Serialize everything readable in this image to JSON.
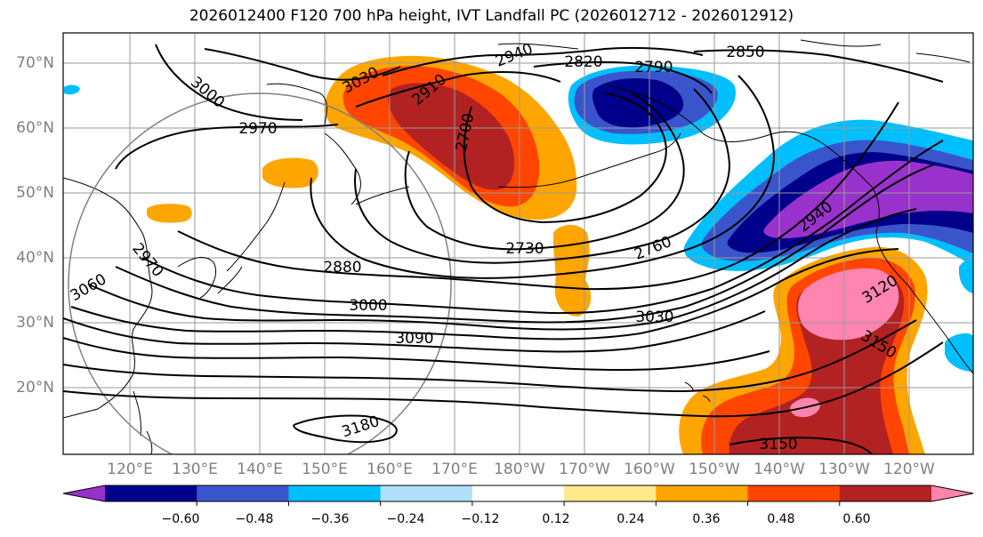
{
  "title": "2026012400 F120 700 hPa height, IVT Landfall PC (2026012712 - 2026012912)",
  "lat_labels": [
    "70°N",
    "60°N",
    "50°N",
    "40°N",
    "30°N",
    "20°N"
  ],
  "lon_labels": [
    "120°E",
    "130°E",
    "140°E",
    "150°E",
    "160°E",
    "170°E",
    "180°W",
    "170°W",
    "160°W",
    "150°W",
    "140°W",
    "130°W",
    "120°W"
  ],
  "contour_labels": [
    "2850",
    "2940",
    "2820",
    "2790",
    "3030",
    "2910",
    "3000",
    "2700",
    "2970",
    "3060",
    "2970",
    "2880",
    "2730",
    "2760",
    "2940",
    "3000",
    "3030",
    "3090",
    "3120",
    "3150",
    "3180",
    "3150"
  ],
  "colorbar": {
    "ticks": [
      "−0.60",
      "−0.48",
      "−0.36",
      "−0.24",
      "−0.12",
      "0.12",
      "0.24",
      "0.36",
      "0.48",
      "0.60"
    ],
    "colors": [
      "#9932cc",
      "#00008b",
      "#3a55cc",
      "#00bfff",
      "#b0e0fa",
      "#ffffff",
      "#ffe98a",
      "#ffa500",
      "#ff4500",
      "#b22222",
      "#ff85b0"
    ]
  }
}
